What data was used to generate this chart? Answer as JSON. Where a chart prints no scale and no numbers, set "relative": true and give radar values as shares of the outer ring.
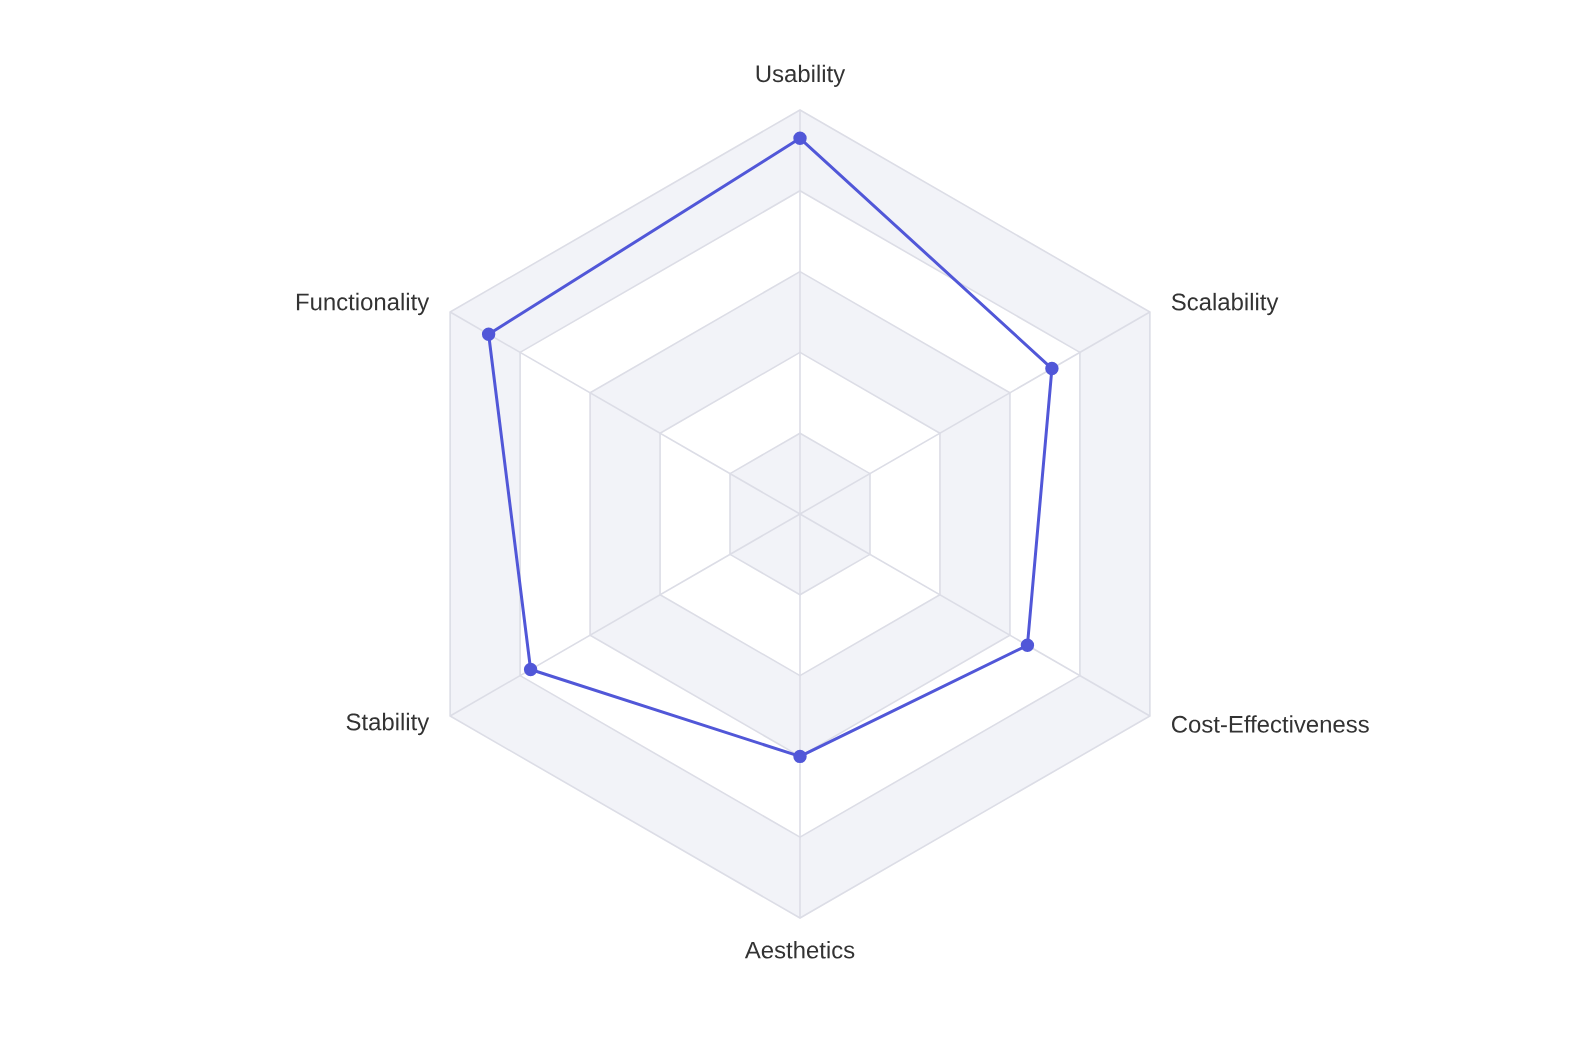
{
  "chart_data": {
    "type": "radar",
    "relative": true,
    "grid": true,
    "marker": "circle",
    "line_style": "solid",
    "categories": [
      "Usability",
      "Scalability",
      "Cost-Effectiveness",
      "Aesthetics",
      "Stability",
      "Functionality"
    ],
    "series": [
      {
        "color": "#5157d8",
        "values": [
          0.93,
          0.72,
          0.65,
          0.6,
          0.77,
          0.89
        ]
      }
    ]
  }
}
